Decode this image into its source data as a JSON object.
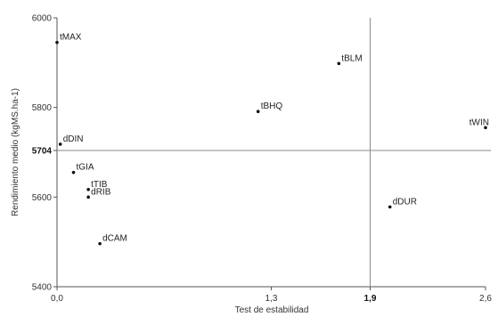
{
  "chart_data": {
    "type": "scatter",
    "xlabel": "Test de estabilidad",
    "ylabel": "Rendimiento medio (kgMS.ha-1)",
    "xlim": [
      0,
      2.6
    ],
    "ylim": [
      5400,
      6000
    ],
    "x_ticks": [
      {
        "value": 0,
        "label": "0,0",
        "bold": false
      },
      {
        "value": 1.3,
        "label": "1,3",
        "bold": false
      },
      {
        "value": 1.9,
        "label": "1,9",
        "bold": true
      },
      {
        "value": 2.6,
        "label": "2,6",
        "bold": false
      }
    ],
    "y_ticks": [
      {
        "value": 5400,
        "label": "5400",
        "bold": false
      },
      {
        "value": 5600,
        "label": "5600",
        "bold": false
      },
      {
        "value": 5704,
        "label": "5704",
        "bold": true
      },
      {
        "value": 5800,
        "label": "5800",
        "bold": false
      },
      {
        "value": 6000,
        "label": "6000",
        "bold": false
      }
    ],
    "reference_lines": {
      "x": 1.9,
      "y": 5704
    },
    "grid": false,
    "points": [
      {
        "label": "tMAX",
        "x": 0.0,
        "y": 5945
      },
      {
        "label": "tBLM",
        "x": 1.71,
        "y": 5898
      },
      {
        "label": "tBHQ",
        "x": 1.22,
        "y": 5791
      },
      {
        "label": "tWIN",
        "x": 2.6,
        "y": 5755
      },
      {
        "label": "dDIN",
        "x": 0.02,
        "y": 5718
      },
      {
        "label": "tGIA",
        "x": 0.1,
        "y": 5655
      },
      {
        "label": "tTIB",
        "x": 0.19,
        "y": 5617
      },
      {
        "label": "dRIB",
        "x": 0.19,
        "y": 5600
      },
      {
        "label": "dDUR",
        "x": 2.02,
        "y": 5578
      },
      {
        "label": "dCAM",
        "x": 0.26,
        "y": 5496
      }
    ]
  }
}
